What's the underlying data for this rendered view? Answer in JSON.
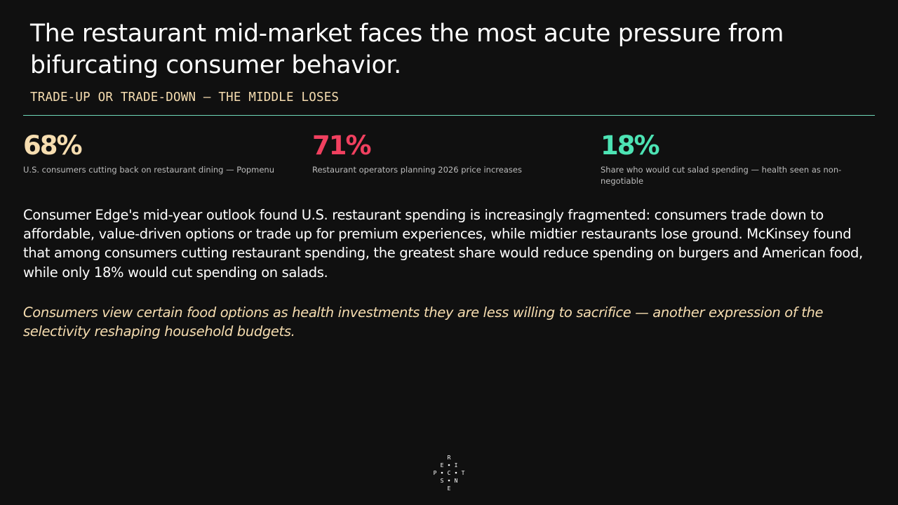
{
  "slide": {
    "title": "The restaurant mid-market faces the most acute pressure from bifurcating consumer behavior.",
    "subtitle": "TRADE-UP OR TRADE-DOWN — THE MIDDLE LOSES",
    "accent_rule_color": "#6fd8b8"
  },
  "stats": [
    {
      "value": "68%",
      "description": "U.S. consumers cutting back on restaurant dining — Popmenu",
      "color": "#f6ddb0"
    },
    {
      "value": "71%",
      "description": "Restaurant operators planning 2026 price increases",
      "color": "#f0405f"
    },
    {
      "value": "18%",
      "description": "Share who would cut salad spending — health seen as non-negotiable",
      "color": "#4de3b4"
    }
  ],
  "body": {
    "paragraph": "Consumer Edge's mid-year outlook found U.S. restaurant spending is increasingly fragmented: consumers trade down to affordable, value-driven options or trade up for premium experiences, while midtier restaurants lose ground. McKinsey found that among consumers cutting restaurant spending, the greatest share would reduce spending on burgers and American food, while only 18% would cut spending on salads.",
    "quote": "Consumers view certain food options as health investments they are less willing to sacrifice — another expression of the selectivity reshaping household budgets."
  },
  "logo": {
    "letters": [
      "R",
      "E",
      "I",
      "P",
      "C",
      "T",
      "S",
      "N",
      "E"
    ],
    "icon": "perspective-logo"
  }
}
